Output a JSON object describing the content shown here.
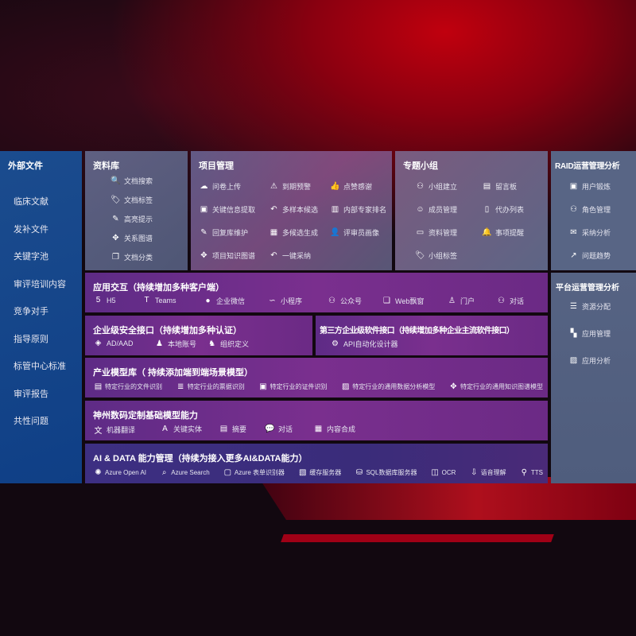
{
  "left": {
    "title": "外部文件",
    "items": [
      "临床文献",
      "发补文件",
      "关键字池",
      "审评培训内容",
      "竞争对手",
      "指导原则",
      "标管中心标准",
      "审评报告",
      "共性问题"
    ]
  },
  "library": {
    "title": "资料库",
    "items": [
      {
        "icon": "doc-search",
        "label": "文档搜索"
      },
      {
        "icon": "tag",
        "label": "文档标签"
      },
      {
        "icon": "pen",
        "label": "高亮提示"
      },
      {
        "icon": "graph",
        "label": "关系图谱"
      },
      {
        "icon": "doc-stack",
        "label": "文档分类"
      }
    ]
  },
  "project": {
    "title": "项目管理",
    "items": [
      {
        "icon": "cloud-upload",
        "label": "问卷上传"
      },
      {
        "icon": "alarm",
        "label": "到期预警"
      },
      {
        "icon": "thumbs-up",
        "label": "点赞感谢"
      },
      {
        "icon": "card",
        "label": "关键信息提取"
      },
      {
        "icon": "reply",
        "label": "多样本候选"
      },
      {
        "icon": "ranking",
        "label": "内部专家排名"
      },
      {
        "icon": "pen",
        "label": "回复库维护"
      },
      {
        "icon": "puzzle",
        "label": "多候选生成"
      },
      {
        "icon": "user",
        "label": "评审员画像"
      },
      {
        "icon": "graph",
        "label": "项目知识图谱"
      },
      {
        "icon": "reply",
        "label": "一键采纳"
      }
    ]
  },
  "group": {
    "title": "专题小组",
    "items": [
      {
        "icon": "users",
        "label": "小组建立"
      },
      {
        "icon": "bbs",
        "label": "留言板"
      },
      {
        "icon": "user-add",
        "label": "成员管理"
      },
      {
        "icon": "clipboard",
        "label": "代办列表"
      },
      {
        "icon": "folder",
        "label": "资料管理"
      },
      {
        "icon": "bell",
        "label": "事项提醒"
      },
      {
        "icon": "tag",
        "label": "小组标签"
      }
    ]
  },
  "raid": {
    "title": "RAID运营管理分析",
    "items": [
      {
        "icon": "id-card",
        "label": "用户锻炼"
      },
      {
        "icon": "users",
        "label": "角色管理"
      },
      {
        "icon": "qa",
        "label": "采纳分析"
      },
      {
        "icon": "trend",
        "label": "问题趋势"
      }
    ]
  },
  "platform": {
    "title": "平台运营管理分析",
    "items": [
      {
        "icon": "list",
        "label": "资源分配"
      },
      {
        "icon": "apps",
        "label": "应用管理"
      },
      {
        "icon": "chart",
        "label": "应用分析"
      }
    ]
  },
  "app": {
    "title": "应用交互（持续增加多种客户端）",
    "items": [
      {
        "icon": "html5",
        "label": "H5"
      },
      {
        "icon": "teams",
        "label": "Teams"
      },
      {
        "icon": "wechat",
        "label": "企业微信"
      },
      {
        "icon": "mini",
        "label": "小程序"
      },
      {
        "icon": "users",
        "label": "公众号"
      },
      {
        "icon": "window",
        "label": "Web飘窗"
      },
      {
        "icon": "portal",
        "label": "门户"
      },
      {
        "icon": "chat-users",
        "label": "对话"
      }
    ]
  },
  "security": {
    "title": "企业级安全接口（持续增加多种认证）",
    "items": [
      {
        "icon": "diamond",
        "label": "AD/AAD"
      },
      {
        "icon": "user-lock",
        "label": "本地账号"
      },
      {
        "icon": "org",
        "label": "组织定义"
      }
    ]
  },
  "third": {
    "title": "第三方企业级软件接口（持续增加多种企业主流软件接口）",
    "items": [
      {
        "icon": "gear",
        "label": "API自动化设计器"
      }
    ]
  },
  "industry": {
    "title": "产业模型库（ 持续添加端到端场景模型）",
    "items": [
      {
        "icon": "doc",
        "label": "特定行业的文件识别"
      },
      {
        "icon": "receipt",
        "label": "特定行业的票据识别"
      },
      {
        "icon": "id-card",
        "label": "特定行业的证件识别"
      },
      {
        "icon": "chart",
        "label": "特定行业的通用数据分析模型"
      },
      {
        "icon": "graph",
        "label": "特定行业的通用知识图谱模型"
      }
    ]
  },
  "base": {
    "title": "神州数码定制基础模型能力",
    "items": [
      {
        "icon": "translate",
        "label": "机器翻译"
      },
      {
        "icon": "entity",
        "label": "关键实体"
      },
      {
        "icon": "doc",
        "label": "摘要"
      },
      {
        "icon": "chat",
        "label": "对话"
      },
      {
        "icon": "puzzle",
        "label": "内容合成"
      }
    ]
  },
  "ai": {
    "title": "AI & DATA 能力管理（持续为接入更多AI&DATA能力）",
    "items": [
      {
        "icon": "openai",
        "label": "Azure Open AI"
      },
      {
        "icon": "search-doc",
        "label": "Azure Search"
      },
      {
        "icon": "form",
        "label": "Azure 表单识别器"
      },
      {
        "icon": "cache",
        "label": "缓存服务器"
      },
      {
        "icon": "database",
        "label": "SQL数据库服务器"
      },
      {
        "icon": "ocr",
        "label": "OCR"
      },
      {
        "icon": "voice",
        "label": "语音理解"
      },
      {
        "icon": "tts",
        "label": "TTS"
      }
    ]
  }
}
